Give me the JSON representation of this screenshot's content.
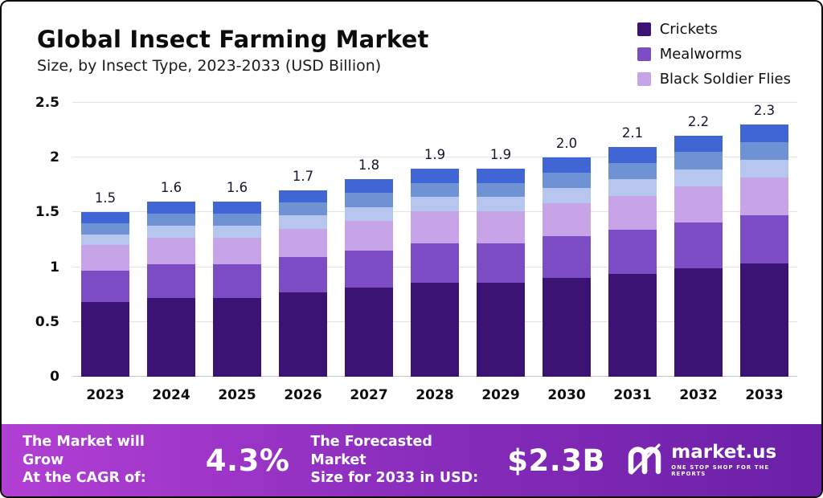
{
  "header": {
    "title": "Global Insect Farming Market",
    "subtitle": "Size, by Insect Type, 2023-2033 (USD Billion)"
  },
  "legend": [
    {
      "label": "Crickets",
      "color": "#3a1374"
    },
    {
      "label": "Mealworms",
      "color": "#7b4cc4"
    },
    {
      "label": "Black Soldier Flies",
      "color": "#c7a4e8"
    }
  ],
  "chart_data": {
    "type": "bar",
    "stacked": true,
    "title": "Global Insect Farming Market Size, by Insect Type, 2023-2033 (USD Billion)",
    "xlabel": "",
    "ylabel": "USD Billion",
    "ylim": [
      0,
      2.5
    ],
    "yticks": [
      "0",
      "0.5",
      "1",
      "1.5",
      "2",
      "2.5"
    ],
    "grid": true,
    "legend_position": "top-right",
    "categories": [
      "2023",
      "2024",
      "2025",
      "2026",
      "2027",
      "2028",
      "2029",
      "2030",
      "2031",
      "2032",
      "2033"
    ],
    "totals": [
      1.5,
      1.6,
      1.6,
      1.7,
      1.8,
      1.9,
      1.9,
      2.0,
      2.1,
      2.2,
      2.3
    ],
    "bar_labels": [
      "1.5",
      "1.6",
      "1.6",
      "1.7",
      "1.8",
      "1.9",
      "1.9",
      "2.0",
      "2.1",
      "2.2",
      "2.3"
    ],
    "series": [
      {
        "name": "Crickets",
        "color": "#3a1374",
        "values": [
          0.68,
          0.72,
          0.72,
          0.77,
          0.81,
          0.86,
          0.86,
          0.9,
          0.94,
          0.99,
          1.03
        ]
      },
      {
        "name": "Mealworms",
        "color": "#7b4cc4",
        "values": [
          0.29,
          0.31,
          0.31,
          0.32,
          0.34,
          0.36,
          0.36,
          0.38,
          0.4,
          0.42,
          0.44
        ]
      },
      {
        "name": "Black Soldier Flies",
        "color": "#c7a4e8",
        "values": [
          0.23,
          0.24,
          0.24,
          0.26,
          0.27,
          0.29,
          0.29,
          0.3,
          0.31,
          0.33,
          0.35
        ]
      },
      {
        "name": "unlabeled-segment-4",
        "color": "#b7c6ef",
        "values": [
          0.1,
          0.11,
          0.11,
          0.12,
          0.13,
          0.13,
          0.13,
          0.14,
          0.15,
          0.15,
          0.16
        ]
      },
      {
        "name": "unlabeled-segment-5",
        "color": "#6f92d4",
        "values": [
          0.1,
          0.11,
          0.11,
          0.12,
          0.13,
          0.13,
          0.13,
          0.14,
          0.15,
          0.16,
          0.16
        ]
      },
      {
        "name": "unlabeled-segment-6",
        "color": "#3f66d4",
        "values": [
          0.1,
          0.11,
          0.11,
          0.11,
          0.12,
          0.13,
          0.13,
          0.14,
          0.15,
          0.15,
          0.16
        ]
      }
    ]
  },
  "banner": {
    "gradient": [
      "#b23fd4",
      "#8a2dbd",
      "#6a1fa6"
    ],
    "cagr_label": "The Market will Grow\nAt the CAGR of:",
    "cagr_value": "4.3%",
    "forecast_label": "The Forecasted Market\nSize for 2033 in USD:",
    "forecast_value": "$2.3B",
    "brand": "market.us",
    "tagline": "ONE STOP SHOP FOR THE REPORTS"
  }
}
